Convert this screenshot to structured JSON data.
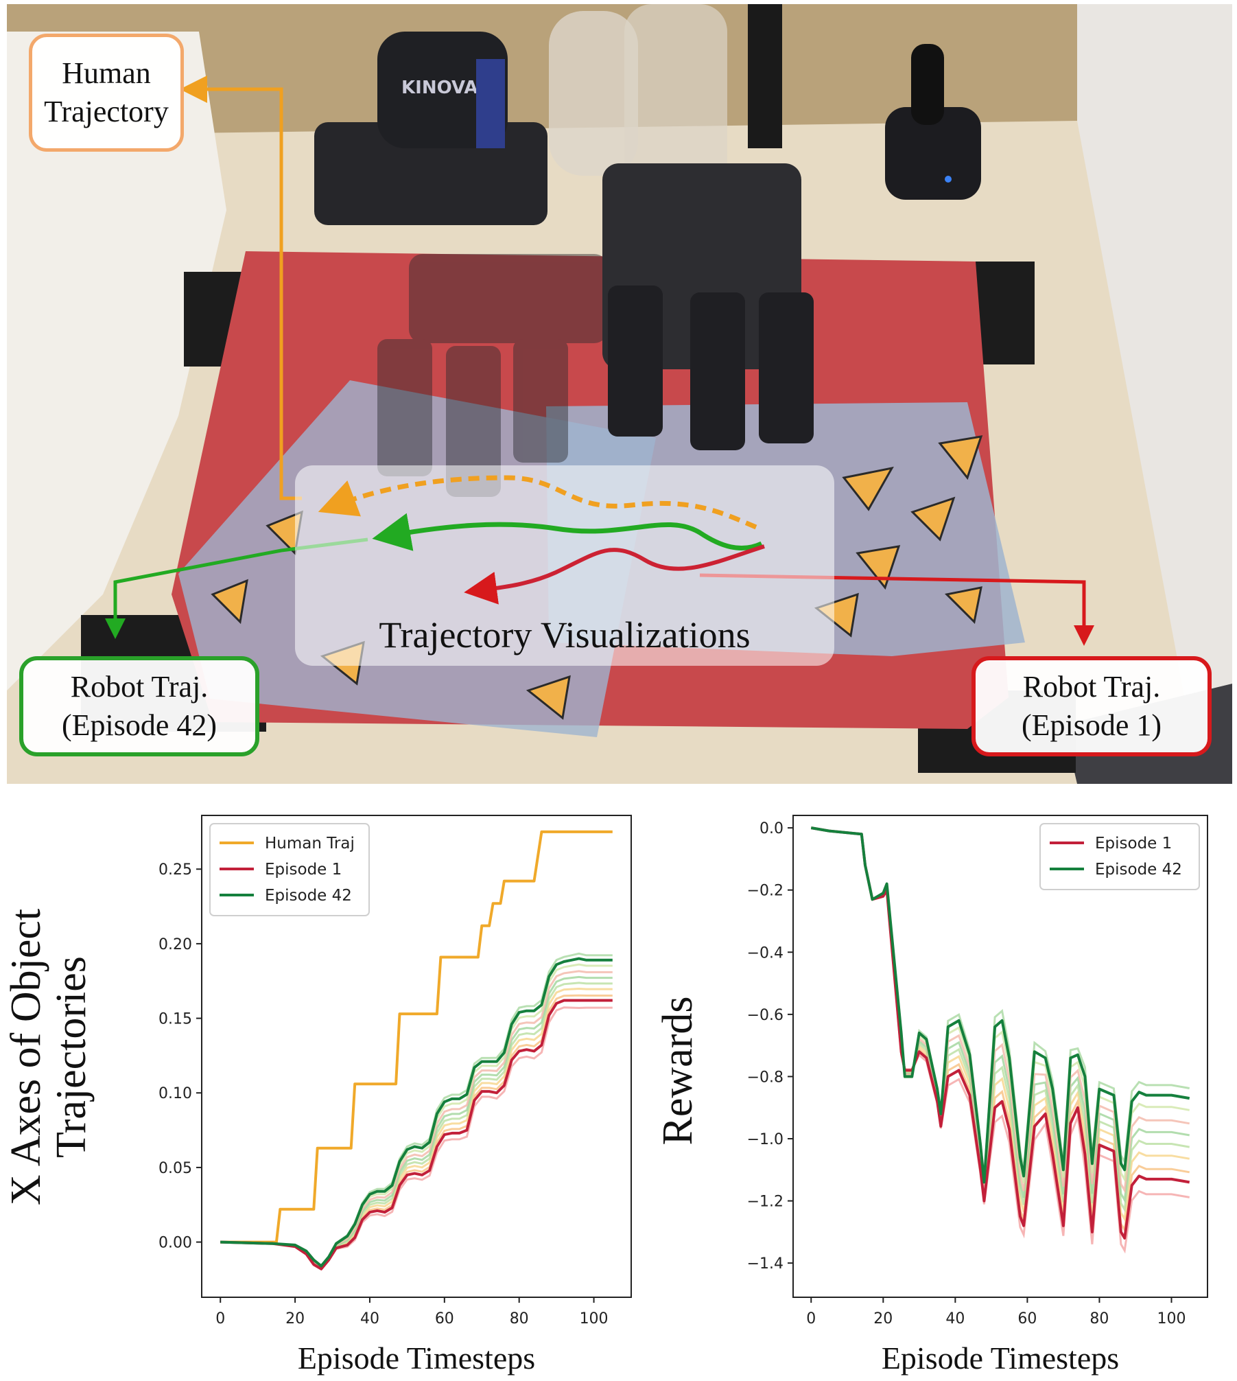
{
  "photo": {
    "brand_text": "KINOVA",
    "callouts": {
      "human": [
        "Human",
        "Trajectory"
      ],
      "robot_episode_42": [
        "Robot Traj.",
        "(Episode 42)"
      ],
      "robot_episode_1": [
        "Robot Traj.",
        "(Episode 1)"
      ]
    },
    "overlay_label": "Trajectory Visualizations",
    "colors": {
      "human": "#f0a020",
      "episode_42": "#22aa22",
      "episode_1": "#cc2233",
      "mat": "#c8494c",
      "table": "#e7dbc4"
    }
  },
  "chart_data": [
    {
      "type": "line",
      "ylabel_lines": [
        "X Axes of Object",
        "Trajectories"
      ],
      "xlabel": "Episode Timesteps",
      "xlim": [
        -5,
        110
      ],
      "ylim": [
        -0.037,
        0.286
      ],
      "xticks": [
        0,
        20,
        40,
        60,
        80,
        100
      ],
      "yticks": [
        0.0,
        0.05,
        0.1,
        0.15,
        0.2,
        0.25
      ],
      "ytick_labels": [
        "0.00",
        "0.05",
        "0.10",
        "0.15",
        "0.20",
        "0.25"
      ],
      "legend": {
        "position": "upper-left",
        "entries": [
          "Human Traj",
          "Episode 1",
          "Episode 42"
        ]
      },
      "series": [
        {
          "name": "Human Traj",
          "color": "#f0a92a",
          "x": [
            0,
            15,
            16,
            22,
            25,
            26,
            32,
            35,
            36,
            42,
            47,
            48,
            55,
            58,
            59,
            67,
            69,
            70,
            72,
            73,
            75,
            76,
            80,
            84,
            86,
            105
          ],
          "y": [
            0.0,
            0.0,
            0.022,
            0.022,
            0.022,
            0.063,
            0.063,
            0.063,
            0.106,
            0.106,
            0.106,
            0.153,
            0.153,
            0.153,
            0.191,
            0.191,
            0.191,
            0.212,
            0.212,
            0.227,
            0.227,
            0.242,
            0.242,
            0.242,
            0.275,
            0.275
          ]
        },
        {
          "name": "Episode 1",
          "color": "#c2203a",
          "x": [
            0,
            14,
            20,
            23,
            25,
            27,
            29,
            31,
            34,
            36,
            38,
            40,
            42,
            44,
            46,
            48,
            50,
            52,
            54,
            56,
            58,
            60,
            62,
            64,
            66,
            68,
            70,
            72,
            74,
            76,
            78,
            80,
            82,
            84,
            86,
            88,
            90,
            92,
            94,
            96,
            98,
            100,
            105
          ],
          "y": [
            0.0,
            -0.001,
            -0.003,
            -0.008,
            -0.015,
            -0.018,
            -0.012,
            -0.004,
            -0.002,
            0.003,
            0.015,
            0.02,
            0.021,
            0.02,
            0.023,
            0.038,
            0.045,
            0.046,
            0.045,
            0.048,
            0.064,
            0.072,
            0.073,
            0.073,
            0.075,
            0.095,
            0.101,
            0.101,
            0.1,
            0.105,
            0.122,
            0.128,
            0.129,
            0.128,
            0.132,
            0.152,
            0.16,
            0.162,
            0.162,
            0.162,
            0.162,
            0.162,
            0.162
          ]
        },
        {
          "name": "Episode 42",
          "color": "#15803d",
          "x": [
            0,
            14,
            20,
            23,
            25,
            27,
            29,
            31,
            34,
            36,
            38,
            40,
            42,
            44,
            46,
            48,
            50,
            52,
            54,
            56,
            58,
            60,
            62,
            64,
            66,
            68,
            70,
            72,
            74,
            76,
            78,
            80,
            82,
            84,
            86,
            88,
            90,
            92,
            94,
            96,
            98,
            100,
            105
          ],
          "y": [
            0.0,
            -0.001,
            -0.002,
            -0.006,
            -0.012,
            -0.016,
            -0.01,
            -0.001,
            0.004,
            0.012,
            0.025,
            0.032,
            0.034,
            0.034,
            0.038,
            0.054,
            0.062,
            0.064,
            0.063,
            0.067,
            0.086,
            0.094,
            0.096,
            0.096,
            0.099,
            0.117,
            0.121,
            0.121,
            0.121,
            0.127,
            0.146,
            0.154,
            0.155,
            0.155,
            0.159,
            0.178,
            0.186,
            0.188,
            0.189,
            0.19,
            0.189,
            0.189,
            0.189
          ]
        }
      ]
    },
    {
      "type": "line",
      "ylabel": "Rewards",
      "xlabel": "Episode Timesteps",
      "xlim": [
        -5,
        110
      ],
      "ylim": [
        -1.51,
        0.04
      ],
      "xticks": [
        0,
        20,
        40,
        60,
        80,
        100
      ],
      "yticks": [
        0.0,
        -0.2,
        -0.4,
        -0.6,
        -0.8,
        -1.0,
        -1.2,
        -1.4
      ],
      "ytick_labels": [
        "0.0",
        "−0.2",
        "−0.4",
        "−0.6",
        "−0.8",
        "−1.0",
        "−1.2",
        "−1.4"
      ],
      "legend": {
        "position": "upper-right",
        "entries": [
          "Episode 1",
          "Episode 42"
        ]
      },
      "series": [
        {
          "name": "Episode 1",
          "color": "#c2203a",
          "x": [
            0,
            5,
            14,
            15,
            17,
            20,
            21,
            22,
            25,
            26,
            28,
            30,
            32,
            35,
            36,
            38,
            41,
            44,
            47,
            48,
            51,
            53,
            55,
            58,
            59,
            62,
            65,
            67,
            70,
            72,
            74,
            76,
            78,
            80,
            84,
            86,
            87,
            89,
            91,
            93,
            96,
            100,
            105
          ],
          "y": [
            0.0,
            -0.01,
            -0.02,
            -0.12,
            -0.23,
            -0.22,
            -0.2,
            -0.33,
            -0.72,
            -0.78,
            -0.78,
            -0.72,
            -0.74,
            -0.88,
            -0.96,
            -0.8,
            -0.78,
            -0.86,
            -1.1,
            -1.2,
            -0.9,
            -0.88,
            -0.97,
            -1.25,
            -1.28,
            -0.96,
            -0.92,
            -1.05,
            -1.28,
            -0.95,
            -0.9,
            -1.05,
            -1.3,
            -1.02,
            -1.04,
            -1.3,
            -1.32,
            -1.15,
            -1.12,
            -1.13,
            -1.13,
            -1.13,
            -1.14
          ]
        },
        {
          "name": "Episode 42",
          "color": "#15803d",
          "x": [
            0,
            5,
            14,
            15,
            17,
            20,
            21,
            22,
            25,
            26,
            28,
            30,
            32,
            35,
            36,
            38,
            41,
            44,
            47,
            48,
            51,
            53,
            55,
            58,
            59,
            62,
            65,
            67,
            70,
            72,
            74,
            76,
            78,
            80,
            84,
            86,
            87,
            89,
            91,
            93,
            96,
            100,
            105
          ],
          "y": [
            0.0,
            -0.01,
            -0.02,
            -0.12,
            -0.23,
            -0.21,
            -0.18,
            -0.3,
            -0.66,
            -0.8,
            -0.8,
            -0.66,
            -0.68,
            -0.84,
            -0.92,
            -0.64,
            -0.62,
            -0.73,
            -1.02,
            -1.14,
            -0.64,
            -0.62,
            -0.74,
            -1.06,
            -1.12,
            -0.72,
            -0.74,
            -0.84,
            -1.1,
            -0.74,
            -0.73,
            -0.8,
            -1.08,
            -0.84,
            -0.86,
            -1.08,
            -1.1,
            -0.88,
            -0.85,
            -0.86,
            -0.86,
            -0.86,
            -0.87
          ]
        }
      ]
    }
  ]
}
